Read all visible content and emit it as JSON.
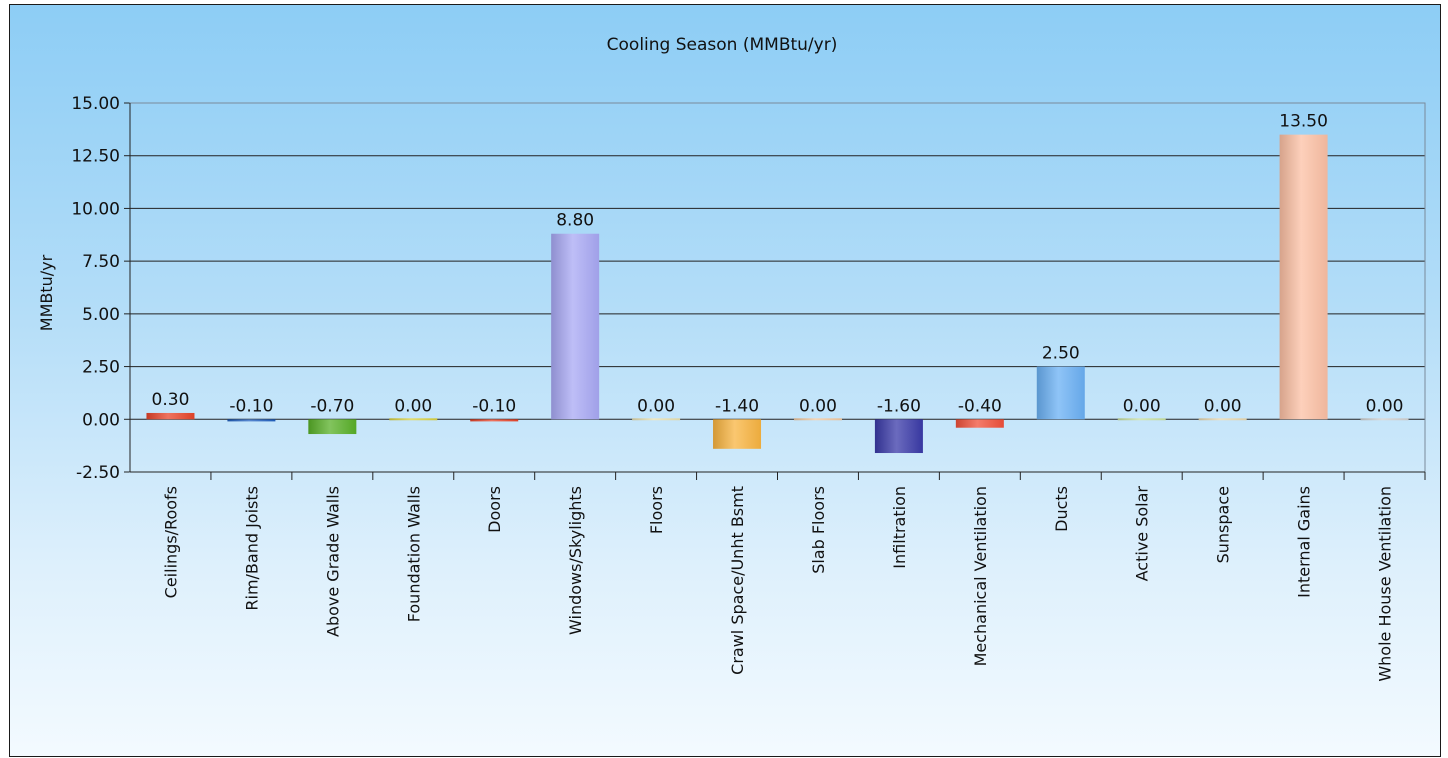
{
  "chart_data": {
    "type": "bar",
    "title": "Cooling Season (MMBtu/yr)",
    "ylabel": "MMBtu/yr",
    "xlabel": "",
    "ylim": [
      -2.5,
      15
    ],
    "yticks": [
      "15.00",
      "12.50",
      "10.00",
      "7.50",
      "5.00",
      "2.50",
      "0.00",
      "-2.50"
    ],
    "ytick_values": [
      15,
      12.5,
      10,
      7.5,
      5,
      2.5,
      0,
      -2.5
    ],
    "grid": true,
    "categories": [
      "Ceilings/Roofs",
      "Rim/Band Joists",
      "Above Grade Walls",
      "Foundation Walls",
      "Doors",
      "Windows/Skylights",
      "Floors",
      "Crawl Space/Unht Bsmt",
      "Slab Floors",
      "Infiltration",
      "Mechanical Ventilation",
      "Ducts",
      "Active Solar",
      "Sunspace",
      "Internal Gains",
      "Whole House Ventilation"
    ],
    "values": [
      0.3,
      -0.1,
      -0.7,
      0.0,
      -0.1,
      8.8,
      0.0,
      -1.4,
      0.0,
      -1.6,
      -0.4,
      2.5,
      0.0,
      0.0,
      13.5,
      0.0
    ],
    "value_labels": [
      "0.30",
      "-0.10",
      "-0.70",
      "0.00",
      "-0.10",
      "8.80",
      "0.00",
      "-1.40",
      "0.00",
      "-1.60",
      "-0.40",
      "2.50",
      "0.00",
      "0.00",
      "13.50",
      "0.00"
    ],
    "bar_colors": [
      "#e8442a",
      "#2060c0",
      "#58b028",
      "#d8d040",
      "#e8442a",
      "#a8a8f4",
      "#e8e0b0",
      "#f8b440",
      "#f0c8a0",
      "#3a3aa8",
      "#f0503a",
      "#6ab0f4",
      "#c8e0a0",
      "#e8d8b0",
      "#fcc0a4",
      "#d0d0d0"
    ]
  }
}
